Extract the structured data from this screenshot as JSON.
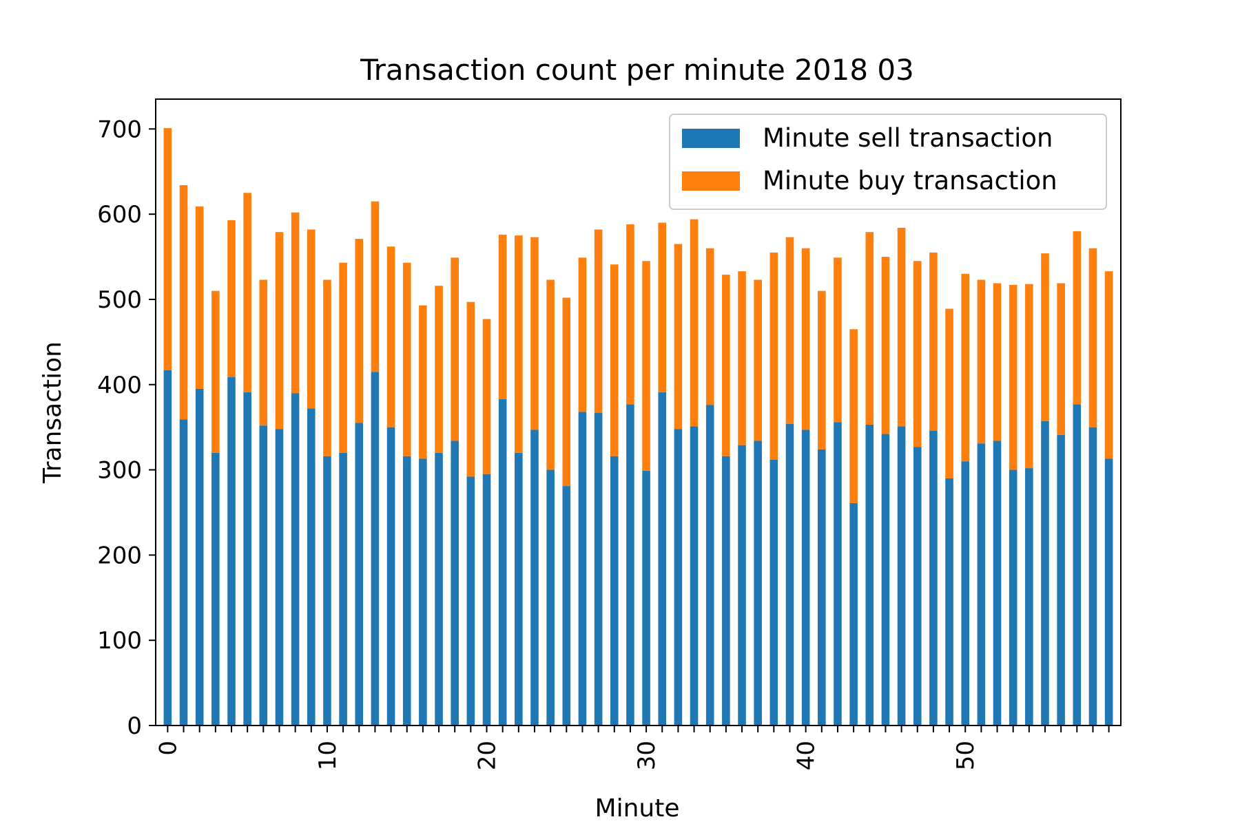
{
  "chart_data": {
    "type": "bar",
    "stacked": true,
    "title": "Transaction count per minute 2018 03",
    "xlabel": "Minute",
    "ylabel": "Transaction",
    "ylim": [
      0,
      735
    ],
    "yticks": [
      0,
      100,
      200,
      300,
      400,
      500,
      600,
      700
    ],
    "xticks": [
      0,
      10,
      20,
      30,
      40,
      50
    ],
    "x": [
      0,
      1,
      2,
      3,
      4,
      5,
      6,
      7,
      8,
      9,
      10,
      11,
      12,
      13,
      14,
      15,
      16,
      17,
      18,
      19,
      20,
      21,
      22,
      23,
      24,
      25,
      26,
      27,
      28,
      29,
      30,
      31,
      32,
      33,
      34,
      35,
      36,
      37,
      38,
      39,
      40,
      41,
      42,
      43,
      44,
      45,
      46,
      47,
      48,
      49,
      50,
      51,
      52,
      53,
      54,
      55,
      56,
      57,
      58,
      59
    ],
    "legend_position": "top-right",
    "grid": false,
    "series": [
      {
        "name": "Minute sell transaction",
        "color": "#1f77b4",
        "values": [
          417,
          359,
          395,
          320,
          409,
          391,
          352,
          348,
          390,
          372,
          316,
          320,
          355,
          415,
          350,
          316,
          313,
          320,
          334,
          292,
          295,
          383,
          320,
          347,
          300,
          281,
          368,
          367,
          316,
          377,
          299,
          391,
          348,
          351,
          376,
          316,
          329,
          334,
          312,
          354,
          347,
          324,
          356,
          261,
          353,
          342,
          351,
          327,
          346,
          290,
          310,
          331,
          334,
          300,
          302,
          357,
          341,
          377,
          350,
          313
        ]
      },
      {
        "name": "Minute buy transaction",
        "color": "#ff7f0e",
        "values": [
          284,
          275,
          214,
          190,
          184,
          234,
          171,
          231,
          212,
          210,
          207,
          223,
          216,
          200,
          212,
          227,
          180,
          196,
          215,
          205,
          182,
          193,
          255,
          226,
          223,
          221,
          181,
          215,
          225,
          211,
          246,
          199,
          217,
          243,
          184,
          213,
          204,
          189,
          243,
          219,
          213,
          186,
          193,
          204,
          226,
          208,
          233,
          218,
          209,
          199,
          220,
          192,
          185,
          217,
          216,
          197,
          178,
          203,
          210,
          220
        ]
      }
    ]
  }
}
